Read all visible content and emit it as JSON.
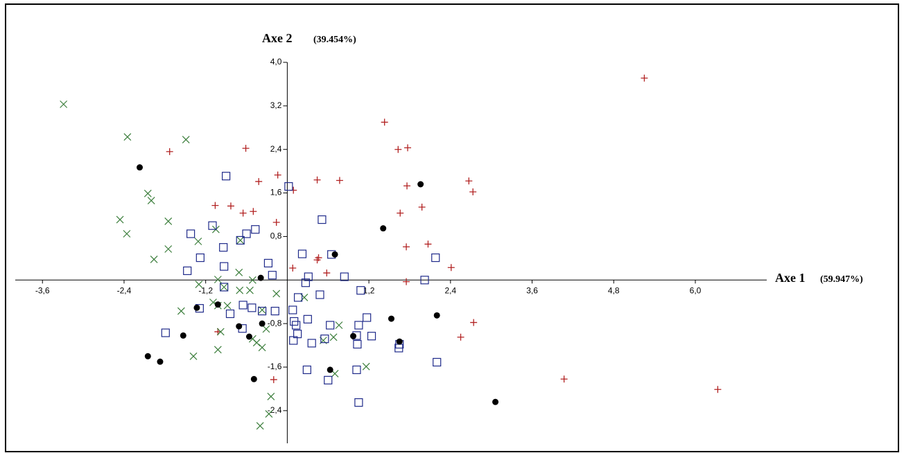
{
  "chart_data": {
    "type": "scatter",
    "x_label": "Axe 1",
    "x_label_note": "(59.947%)",
    "y_label": "Axe 2",
    "y_label_note": "(39.454%)",
    "xlim": [
      -4.0,
      7.05
    ],
    "ylim": [
      -3.0,
      4.0
    ],
    "xticks": [
      {
        "value": -3.6,
        "label": "-3,6"
      },
      {
        "value": -2.4,
        "label": "-2,4"
      },
      {
        "value": -1.2,
        "label": "-1,2"
      },
      {
        "value": 1.2,
        "label": "1,2"
      },
      {
        "value": 2.4,
        "label": "2,4"
      },
      {
        "value": 3.6,
        "label": "3,6"
      },
      {
        "value": 4.8,
        "label": "4,8"
      },
      {
        "value": 6.0,
        "label": "6,0"
      }
    ],
    "yticks": [
      {
        "value": 4.0,
        "label": "4,0"
      },
      {
        "value": 3.2,
        "label": "3,2"
      },
      {
        "value": 2.4,
        "label": "2,4"
      },
      {
        "value": 1.6,
        "label": "1,6"
      },
      {
        "value": 0.8,
        "label": "0,8"
      },
      {
        "value": -0.8,
        "label": "-0,8"
      },
      {
        "value": -1.6,
        "label": "-1,6"
      },
      {
        "value": -2.4,
        "label": "-2,4"
      }
    ],
    "series": [
      {
        "marker": "plus",
        "color": "#b22222",
        "x": [
          5.25,
          1.43,
          -1.73,
          -0.61,
          1.63,
          1.77,
          -0.14,
          -0.42,
          0.44,
          0.77,
          0.09,
          1.76,
          2.67,
          2.73,
          -1.06,
          -0.83,
          -0.65,
          -0.5,
          1.98,
          1.66,
          -0.16,
          1.75,
          2.07,
          0.46,
          0.44,
          0.58,
          0.08,
          2.41,
          1.75,
          2.74,
          2.55,
          -1.02,
          -0.2,
          4.07,
          6.33
        ],
        "values": [
          3.71,
          2.9,
          2.36,
          2.42,
          2.4,
          2.43,
          1.93,
          1.81,
          1.84,
          1.83,
          1.65,
          1.73,
          1.82,
          1.62,
          1.37,
          1.36,
          1.23,
          1.26,
          1.34,
          1.23,
          1.06,
          0.61,
          0.66,
          0.41,
          0.37,
          0.13,
          0.22,
          0.23,
          -0.03,
          -0.78,
          -1.05,
          -0.95,
          -1.83,
          -1.82,
          -2.01
        ]
      },
      {
        "marker": "cross",
        "color": "#3a7d3a",
        "x": [
          -3.29,
          -2.35,
          -1.49,
          -2.05,
          -2.0,
          -2.46,
          -1.75,
          -2.36,
          -1.75,
          -1.96,
          -1.31,
          -1.05,
          -0.71,
          -1.02,
          -1.3,
          -0.51,
          -0.55,
          -0.7,
          -0.16,
          -1.56,
          -1.09,
          -1.02,
          -0.88,
          -0.37,
          -0.98,
          -0.31,
          -0.51,
          -1.38,
          -1.02,
          -0.45,
          -0.37,
          0.68,
          0.53,
          0.76,
          0.25,
          0.7,
          1.16,
          -0.24,
          -0.27,
          -0.4,
          -0.93,
          -0.69
        ],
        "values": [
          3.23,
          2.63,
          2.58,
          1.59,
          1.46,
          1.11,
          1.08,
          0.85,
          0.57,
          0.38,
          0.71,
          0.93,
          0.14,
          0.01,
          -0.08,
          0.0,
          -0.19,
          -0.19,
          -0.25,
          -0.57,
          -0.41,
          -0.47,
          -0.47,
          -0.55,
          -0.95,
          -0.9,
          -1.08,
          -1.4,
          -1.28,
          -1.15,
          -1.24,
          -1.05,
          -1.11,
          -0.83,
          -0.32,
          -1.72,
          -1.59,
          -2.14,
          -2.46,
          -2.68,
          -0.13,
          0.73
        ]
      },
      {
        "marker": "square",
        "color": "#1f2a8a",
        "x": [
          -0.9,
          0.02,
          -0.47,
          -0.6,
          -1.1,
          -1.42,
          -1.28,
          -0.94,
          -0.93,
          -1.47,
          0.51,
          0.22,
          -0.28,
          -0.22,
          0.31,
          0.27,
          0.84,
          2.02,
          2.18,
          1.08,
          0.48,
          0.16,
          -0.65,
          -0.52,
          -0.37,
          -0.18,
          -0.84,
          -1.29,
          -0.66,
          0.08,
          0.1,
          0.3,
          0.13,
          0.15,
          0.09,
          0.36,
          0.55,
          1.05,
          1.17,
          1.02,
          1.03,
          1.24,
          1.65,
          1.64,
          -1.79,
          0.29,
          0.6,
          1.02,
          2.2,
          1.05,
          -0.93,
          0.65,
          0.63,
          -0.69
        ],
        "values": [
          1.91,
          1.72,
          0.93,
          0.85,
          1.0,
          0.85,
          0.41,
          0.6,
          0.25,
          0.17,
          1.11,
          0.48,
          0.31,
          0.09,
          0.06,
          -0.05,
          0.06,
          0.0,
          0.41,
          -0.19,
          -0.27,
          -0.32,
          -0.46,
          -0.51,
          -0.57,
          -0.57,
          -0.62,
          -0.52,
          -0.89,
          -0.55,
          -0.76,
          -0.72,
          -0.83,
          -0.99,
          -1.11,
          -1.16,
          -1.08,
          -0.83,
          -0.69,
          -1.02,
          -1.18,
          -1.03,
          -1.18,
          -1.25,
          -0.97,
          -1.65,
          -1.84,
          -1.65,
          -1.51,
          -2.25,
          -0.13,
          0.47,
          -0.83,
          0.73
        ]
      },
      {
        "marker": "dot",
        "color": "#000000",
        "x": [
          -2.17,
          1.96,
          1.41,
          0.7,
          -0.39,
          -1.02,
          -1.33,
          -0.71,
          -0.37,
          -0.56,
          -1.53,
          -2.05,
          -1.87,
          0.97,
          1.53,
          1.65,
          2.2,
          0.63,
          -0.49,
          3.06
        ],
        "values": [
          2.07,
          1.76,
          0.95,
          0.47,
          0.04,
          -0.45,
          -0.51,
          -0.85,
          -0.8,
          -1.04,
          -1.02,
          -1.4,
          -1.5,
          -1.03,
          -0.71,
          -1.13,
          -0.65,
          -1.65,
          -1.82,
          -2.24
        ]
      }
    ]
  }
}
